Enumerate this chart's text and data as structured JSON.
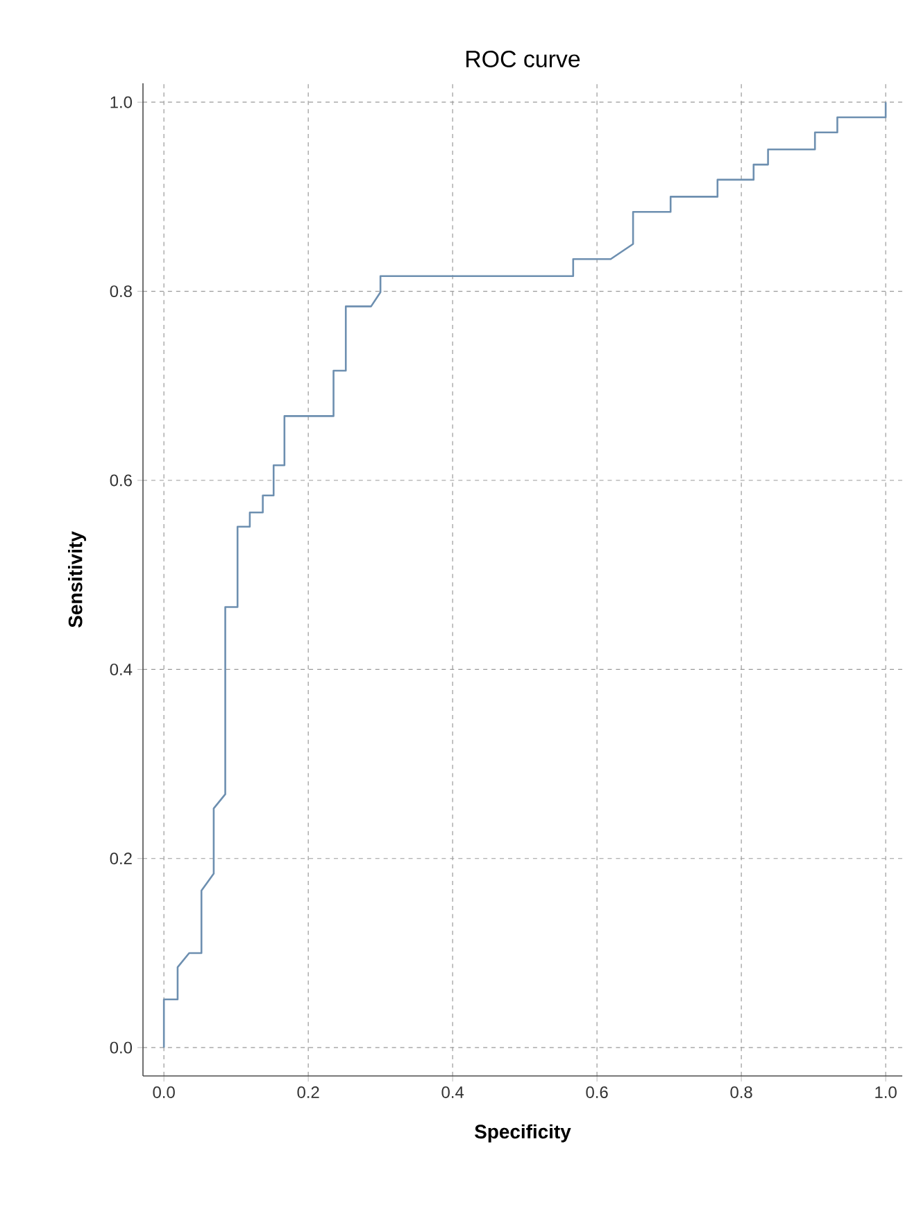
{
  "chart_data": {
    "type": "line",
    "title": "ROC curve",
    "xlabel": "**Specificity**",
    "ylabel": "**Sensitivity**",
    "series": [
      {
        "color": "#6d8fb0",
        "x": [
          0.0,
          0.0,
          0.019,
          0.019,
          0.035,
          0.052,
          0.052,
          0.069,
          0.069,
          0.085,
          0.085,
          0.102,
          0.102,
          0.119,
          0.119,
          0.137,
          0.137,
          0.152,
          0.152,
          0.167,
          0.167,
          0.235,
          0.235,
          0.252,
          0.252,
          0.287,
          0.3,
          0.3,
          0.567,
          0.567,
          0.619,
          0.65,
          0.65,
          0.702,
          0.702,
          0.767,
          0.767,
          0.817,
          0.817,
          0.837,
          0.837,
          0.902,
          0.902,
          0.933,
          0.933,
          1.0,
          1.0
        ],
        "values": [
          0.0,
          0.051,
          0.051,
          0.085,
          0.1,
          0.1,
          0.166,
          0.184,
          0.253,
          0.268,
          0.466,
          0.466,
          0.551,
          0.551,
          0.566,
          0.566,
          0.584,
          0.584,
          0.616,
          0.616,
          0.668,
          0.668,
          0.716,
          0.716,
          0.784,
          0.784,
          0.799,
          0.816,
          0.816,
          0.834,
          0.834,
          0.85,
          0.884,
          0.884,
          0.9,
          0.9,
          0.918,
          0.918,
          0.934,
          0.934,
          0.95,
          0.95,
          0.968,
          0.968,
          0.984,
          0.984,
          1.0
        ]
      }
    ],
    "xlim": [
      -0.029,
      1.023
    ],
    "ylim": [
      -0.03,
      1.02
    ],
    "xticks": [
      {
        "value": 0,
        "label": "0.0"
      },
      {
        "value": 0.2,
        "label": "0.2"
      },
      {
        "value": 0.4,
        "label": "0.4"
      },
      {
        "value": 0.6,
        "label": "0.6"
      },
      {
        "value": 0.8,
        "label": "0.8"
      },
      {
        "value": 1,
        "label": "1.0"
      }
    ],
    "yticks": [
      {
        "value": 0,
        "label": "0.0"
      },
      {
        "value": 0.2,
        "label": "0.2"
      },
      {
        "value": 0.4,
        "label": "0.4"
      },
      {
        "value": 0.6,
        "label": "0.6"
      },
      {
        "value": 0.8,
        "label": "0.8"
      },
      {
        "value": 1,
        "label": "1.0"
      }
    ],
    "grid": true
  }
}
